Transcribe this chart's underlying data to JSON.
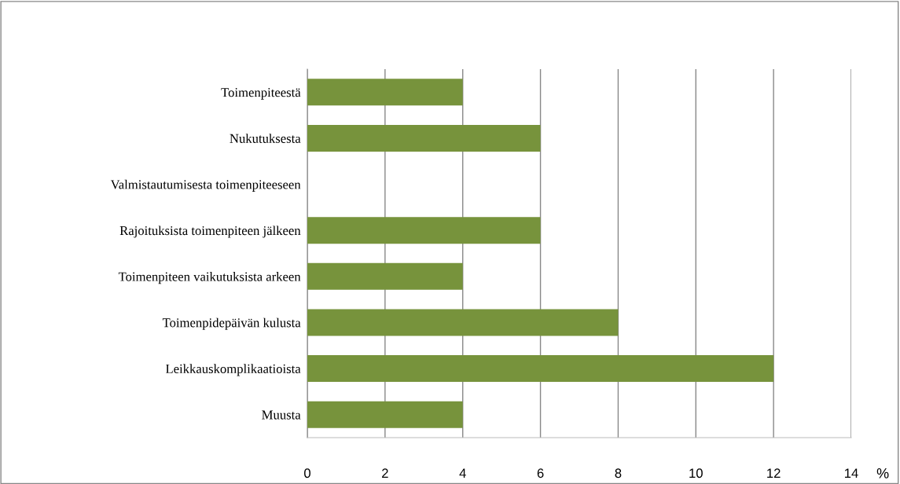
{
  "chart_data": {
    "type": "bar",
    "orientation": "horizontal",
    "xlabel": "%",
    "categories": [
      "Toimenpiteestä",
      "Nukutuksesta",
      "Valmistautumisesta toimenpiteeseen",
      "Rajoituksista toimenpiteen jälkeen",
      "Toimenpiteen vaikutuksista arkeen",
      "Toimenpidepäivän kulusta",
      "Leikkauskomplikaatioista",
      "Muusta"
    ],
    "values": [
      4,
      6,
      0,
      6,
      4,
      8,
      12,
      4
    ],
    "color": "#77933c",
    "xlim": [
      0,
      14
    ],
    "xticks": [
      0,
      2,
      4,
      6,
      8,
      10,
      12,
      14
    ],
    "grid": "x"
  }
}
